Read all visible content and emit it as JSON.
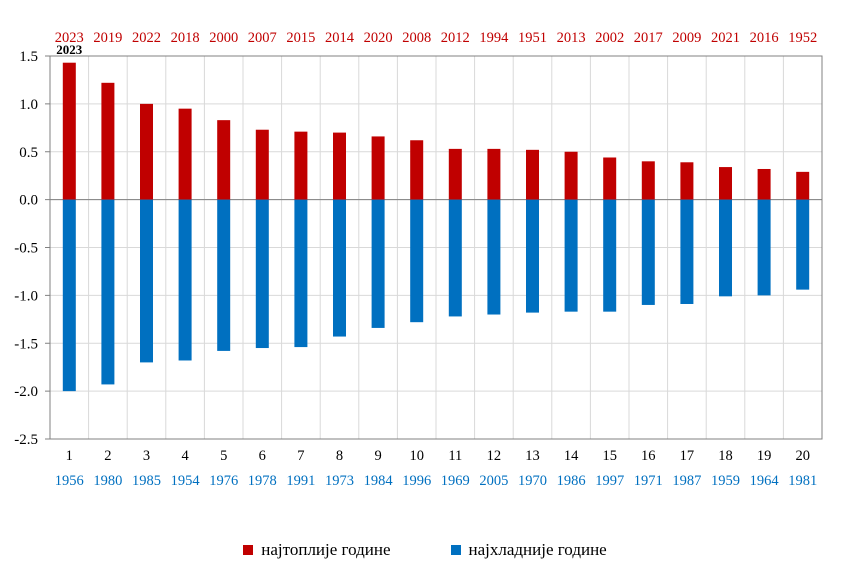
{
  "chart_data": {
    "type": "bar",
    "categories": [
      "1",
      "2",
      "3",
      "4",
      "5",
      "6",
      "7",
      "8",
      "9",
      "10",
      "11",
      "12",
      "13",
      "14",
      "15",
      "16",
      "17",
      "18",
      "19",
      "20"
    ],
    "warm_years": [
      "2023",
      "2019",
      "2022",
      "2018",
      "2000",
      "2007",
      "2015",
      "2014",
      "2020",
      "2008",
      "2012",
      "1994",
      "1951",
      "2013",
      "2002",
      "2017",
      "2009",
      "2021",
      "2016",
      "1952"
    ],
    "cold_years": [
      "1956",
      "1980",
      "1985",
      "1954",
      "1976",
      "1978",
      "1991",
      "1973",
      "1984",
      "1996",
      "1969",
      "2005",
      "1970",
      "1986",
      "1997",
      "1971",
      "1987",
      "1959",
      "1964",
      "1981"
    ],
    "series": [
      {
        "name": "најтоплије године",
        "color": "#c00000",
        "values": [
          1.43,
          1.22,
          1.0,
          0.95,
          0.83,
          0.73,
          0.71,
          0.7,
          0.66,
          0.62,
          0.53,
          0.53,
          0.52,
          0.5,
          0.44,
          0.4,
          0.39,
          0.34,
          0.32,
          0.29
        ]
      },
      {
        "name": "најхладније године",
        "color": "#0070c0",
        "values": [
          -2.0,
          -1.93,
          -1.7,
          -1.68,
          -1.58,
          -1.55,
          -1.54,
          -1.43,
          -1.34,
          -1.28,
          -1.22,
          -1.2,
          -1.18,
          -1.17,
          -1.17,
          -1.1,
          -1.09,
          -1.01,
          -1.0,
          -0.94
        ]
      }
    ],
    "annotation": "2023",
    "yticks": [
      "1.5",
      "1.0",
      "0.5",
      "0.0",
      "-0.5",
      "-1.0",
      "-1.5",
      "-2.0",
      "-2.5"
    ],
    "ylim": [
      -2.5,
      1.5
    ],
    "title": "",
    "xlabel": "",
    "ylabel": "",
    "grid": true,
    "legend_position": "bottom"
  }
}
